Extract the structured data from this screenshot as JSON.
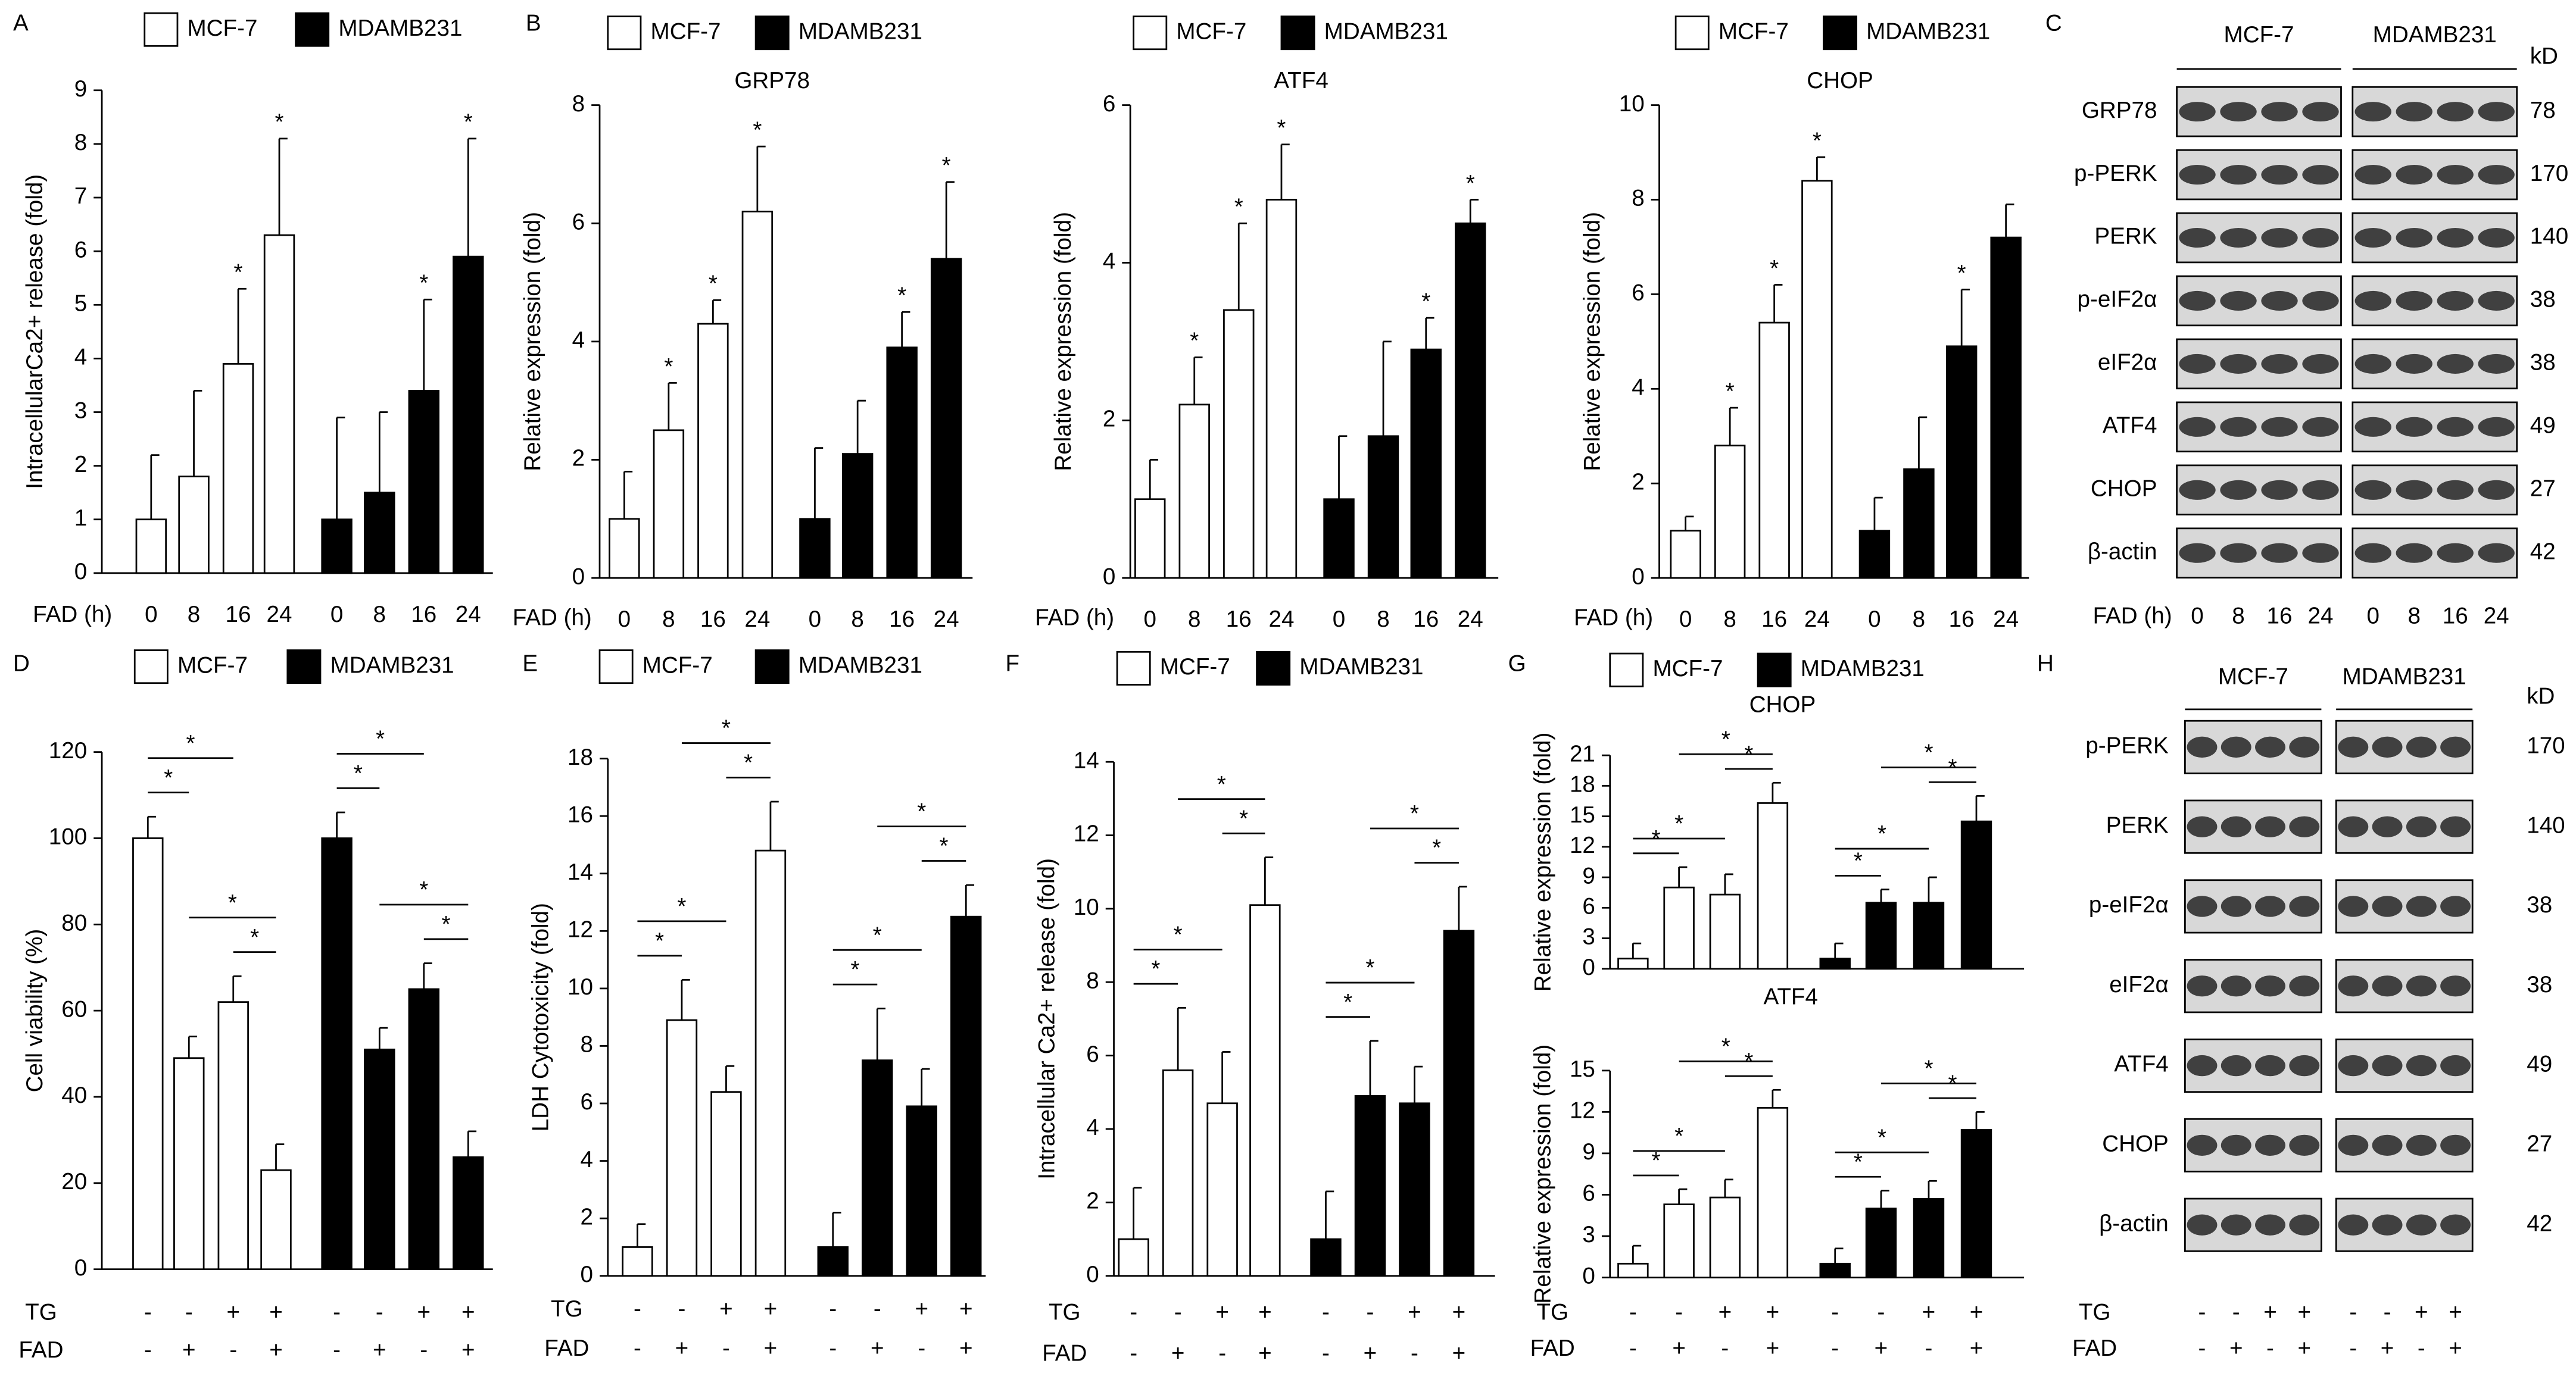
{
  "chart_data": [
    {
      "type": "bar",
      "panel": "A",
      "y_label": "IntracellularCa2+ release (fold)",
      "ylim": [
        0,
        9
      ],
      "yticks": [
        0,
        1,
        2,
        3,
        4,
        5,
        6,
        7,
        8,
        9
      ],
      "x_label": "FAD (h)",
      "categories": [
        "0",
        "8",
        "16",
        "24",
        "0",
        "8",
        "16",
        "24"
      ],
      "series": [
        {
          "name": "MCF-7",
          "color": "#ffffff",
          "values": [
            1,
            1.8,
            3.9,
            6.3,
            null,
            null,
            null,
            null
          ],
          "errors": [
            1.2,
            1.6,
            1.4,
            1.8,
            null,
            null,
            null,
            null
          ]
        },
        {
          "name": "MDAMB231",
          "color": "#000000",
          "values": [
            null,
            null,
            null,
            null,
            1,
            1.5,
            3.4,
            5.9
          ],
          "errors": [
            null,
            null,
            null,
            null,
            1.9,
            1.5,
            1.7,
            2.2
          ]
        }
      ],
      "significant": [
        2,
        3,
        6,
        7
      ],
      "significance_label": "*",
      "legend": true
    },
    {
      "type": "bar",
      "panel": "B",
      "title": "GRP78",
      "y_label": "Relative expression (fold)",
      "ylim": [
        0,
        8
      ],
      "yticks": [
        0,
        2,
        4,
        6,
        8
      ],
      "x_label": "FAD (h)",
      "categories": [
        "0",
        "8",
        "16",
        "24",
        "0",
        "8",
        "16",
        "24"
      ],
      "series": [
        {
          "name": "MCF-7",
          "color": "#ffffff",
          "values": [
            1,
            2.5,
            4.3,
            6.2,
            null,
            null,
            null,
            null
          ],
          "errors": [
            0.8,
            0.8,
            0.4,
            1.1,
            null,
            null,
            null,
            null
          ]
        },
        {
          "name": "MDAMB231",
          "color": "#000000",
          "values": [
            null,
            null,
            null,
            null,
            1,
            2.1,
            3.9,
            5.4
          ],
          "errors": [
            null,
            null,
            null,
            null,
            1.2,
            0.9,
            0.6,
            1.3
          ]
        }
      ],
      "significant": [
        1,
        2,
        3,
        6,
        7
      ],
      "significance_label": "*",
      "legend": true
    },
    {
      "type": "bar",
      "title": "ATF4",
      "y_label": "Relative expression (fold)",
      "ylim": [
        0,
        6
      ],
      "yticks": [
        0,
        2,
        4,
        6
      ],
      "x_label": "FAD (h)",
      "categories": [
        "0",
        "8",
        "16",
        "24",
        "0",
        "8",
        "16",
        "24"
      ],
      "series": [
        {
          "name": "MCF-7",
          "color": "#ffffff",
          "values": [
            1,
            2.2,
            3.4,
            4.8,
            null,
            null,
            null,
            null
          ],
          "errors": [
            0.5,
            0.6,
            1.1,
            0.7,
            null,
            null,
            null,
            null
          ]
        },
        {
          "name": "MDAMB231",
          "color": "#000000",
          "values": [
            null,
            null,
            null,
            null,
            1,
            1.8,
            2.9,
            4.5
          ],
          "errors": [
            null,
            null,
            null,
            null,
            0.8,
            1.2,
            0.4,
            0.3
          ]
        }
      ],
      "significant": [
        1,
        2,
        3,
        6,
        7
      ],
      "significance_label": "*",
      "legend": true
    },
    {
      "type": "bar",
      "title": "CHOP",
      "y_label": "Relative expression (fold)",
      "ylim": [
        0,
        10
      ],
      "yticks": [
        0,
        2,
        4,
        6,
        8,
        10
      ],
      "x_label": "FAD (h)",
      "categories": [
        "0",
        "8",
        "16",
        "24",
        "0",
        "8",
        "16",
        "24"
      ],
      "series": [
        {
          "name": "MCF-7",
          "color": "#ffffff",
          "values": [
            1,
            2.8,
            5.4,
            8.4,
            null,
            null,
            null,
            null
          ],
          "errors": [
            0.3,
            0.8,
            0.8,
            0.5,
            null,
            null,
            null,
            null
          ]
        },
        {
          "name": "MDAMB231",
          "color": "#000000",
          "values": [
            null,
            null,
            null,
            null,
            1,
            2.3,
            4.9,
            7.2
          ],
          "errors": [
            null,
            null,
            null,
            null,
            0.7,
            1.1,
            1.2,
            0.7
          ]
        }
      ],
      "significant": [
        1,
        2,
        3,
        6
      ],
      "significance_label": "*",
      "legend": true
    },
    {
      "type": "bar",
      "panel": "D",
      "y_label": "Cell viability (%)",
      "ylim": [
        0,
        120
      ],
      "yticks": [
        0,
        20,
        40,
        60,
        80,
        100,
        120
      ],
      "condition_rows": [
        {
          "name": "TG",
          "values": [
            "-",
            "-",
            "+",
            "+",
            "-",
            "-",
            "+",
            "+"
          ]
        },
        {
          "name": "FAD",
          "values": [
            "-",
            "+",
            "-",
            "+",
            "-",
            "+",
            "-",
            "+"
          ]
        }
      ],
      "series": [
        {
          "name": "MCF-7",
          "color": "#ffffff",
          "values": [
            100,
            49,
            62,
            23,
            null,
            null,
            null,
            null
          ],
          "errors": [
            5,
            5,
            6,
            6,
            null,
            null,
            null,
            null
          ]
        },
        {
          "name": "MDAMB231",
          "color": "#000000",
          "values": [
            null,
            null,
            null,
            null,
            100,
            51,
            65,
            26
          ],
          "errors": [
            null,
            null,
            null,
            null,
            6,
            5,
            6,
            6
          ]
        }
      ],
      "comparisons": [
        [
          0,
          1
        ],
        [
          0,
          2
        ],
        [
          1,
          3
        ],
        [
          2,
          3
        ],
        [
          4,
          5
        ],
        [
          4,
          6
        ],
        [
          5,
          7
        ],
        [
          6,
          7
        ]
      ],
      "significance_label": "*",
      "legend": true
    },
    {
      "type": "bar",
      "panel": "E",
      "y_label": "LDH Cytotoxicity (fold)",
      "ylim": [
        0,
        18
      ],
      "yticks": [
        0,
        2,
        4,
        6,
        8,
        10,
        12,
        14,
        16,
        18
      ],
      "condition_rows": [
        {
          "name": "TG",
          "values": [
            "-",
            "-",
            "+",
            "+",
            "-",
            "-",
            "+",
            "+"
          ]
        },
        {
          "name": "FAD",
          "values": [
            "-",
            "+",
            "-",
            "+",
            "-",
            "+",
            "-",
            "+"
          ]
        }
      ],
      "series": [
        {
          "name": "MCF-7",
          "color": "#ffffff",
          "values": [
            1,
            8.9,
            6.4,
            14.8,
            null,
            null,
            null,
            null
          ],
          "errors": [
            0.8,
            1.4,
            0.9,
            1.7,
            null,
            null,
            null,
            null
          ]
        },
        {
          "name": "MDAMB231",
          "color": "#000000",
          "values": [
            null,
            null,
            null,
            null,
            1,
            7.5,
            5.9,
            12.5
          ],
          "errors": [
            null,
            null,
            null,
            null,
            1.2,
            1.8,
            1.3,
            1.1
          ]
        }
      ],
      "comparisons": [
        [
          0,
          1
        ],
        [
          0,
          2
        ],
        [
          1,
          3
        ],
        [
          2,
          3
        ],
        [
          4,
          5
        ],
        [
          4,
          6
        ],
        [
          5,
          7
        ],
        [
          6,
          7
        ]
      ],
      "significance_label": "*",
      "legend": true
    },
    {
      "type": "bar",
      "panel": "F",
      "y_label": "Intracellular Ca2+ release (fold)",
      "ylim": [
        0,
        14
      ],
      "yticks": [
        0,
        2,
        4,
        6,
        8,
        10,
        12,
        14
      ],
      "condition_rows": [
        {
          "name": "TG",
          "values": [
            "-",
            "-",
            "+",
            "+",
            "-",
            "-",
            "+",
            "+"
          ]
        },
        {
          "name": "FAD",
          "values": [
            "-",
            "+",
            "-",
            "+",
            "-",
            "+",
            "-",
            "+"
          ]
        }
      ],
      "series": [
        {
          "name": "MCF-7",
          "color": "#ffffff",
          "values": [
            1,
            5.6,
            4.7,
            10.1,
            null,
            null,
            null,
            null
          ],
          "errors": [
            1.4,
            1.7,
            1.4,
            1.3,
            null,
            null,
            null,
            null
          ]
        },
        {
          "name": "MDAMB231",
          "color": "#000000",
          "values": [
            null,
            null,
            null,
            null,
            1,
            4.9,
            4.7,
            9.4
          ],
          "errors": [
            null,
            null,
            null,
            null,
            1.3,
            1.5,
            1.0,
            1.2
          ]
        }
      ],
      "comparisons": [
        [
          0,
          1
        ],
        [
          0,
          2
        ],
        [
          1,
          3
        ],
        [
          2,
          3
        ],
        [
          4,
          5
        ],
        [
          4,
          6
        ],
        [
          5,
          7
        ],
        [
          6,
          7
        ]
      ],
      "significance_label": "*",
      "legend": true
    },
    {
      "type": "bar",
      "panel": "G",
      "title": "CHOP",
      "y_label": "Relative expression (fold)",
      "ylim": [
        0,
        21
      ],
      "yticks": [
        0,
        3,
        6,
        9,
        12,
        15,
        18,
        21
      ],
      "series": [
        {
          "name": "MCF-7",
          "color": "#ffffff",
          "values": [
            1,
            8,
            7.3,
            16.3,
            null,
            null,
            null,
            null
          ],
          "errors": [
            1.5,
            2,
            2,
            2,
            null,
            null,
            null,
            null
          ]
        },
        {
          "name": "MDAMB231",
          "color": "#000000",
          "values": [
            null,
            null,
            null,
            null,
            1,
            6.5,
            6.5,
            14.5
          ],
          "errors": [
            null,
            null,
            null,
            null,
            1.5,
            1.3,
            2.5,
            2.5
          ]
        }
      ],
      "comparisons": [
        [
          0,
          1
        ],
        [
          0,
          2
        ],
        [
          1,
          3
        ],
        [
          2,
          3
        ],
        [
          4,
          5
        ],
        [
          4,
          6
        ],
        [
          5,
          7
        ],
        [
          6,
          7
        ]
      ],
      "significance_label": "*",
      "legend": true
    },
    {
      "type": "bar",
      "title": "ATF4",
      "y_label": "Relative expression (fold)",
      "ylim": [
        0,
        15
      ],
      "yticks": [
        0,
        3,
        6,
        9,
        12,
        15
      ],
      "condition_rows": [
        {
          "name": "TG",
          "values": [
            "-",
            "-",
            "+",
            "+",
            "-",
            "-",
            "+",
            "+"
          ]
        },
        {
          "name": "FAD",
          "values": [
            "-",
            "+",
            "-",
            "+",
            "-",
            "+",
            "-",
            "+"
          ]
        }
      ],
      "series": [
        {
          "name": "MCF-7",
          "color": "#ffffff",
          "values": [
            1,
            5.3,
            5.8,
            12.3,
            null,
            null,
            null,
            null
          ],
          "errors": [
            1.3,
            1.1,
            1.3,
            1.3,
            null,
            null,
            null,
            null
          ]
        },
        {
          "name": "MDAMB231",
          "color": "#000000",
          "values": [
            null,
            null,
            null,
            null,
            1,
            5,
            5.7,
            10.7
          ],
          "errors": [
            null,
            null,
            null,
            null,
            1.1,
            1.3,
            1.3,
            1.3
          ]
        }
      ],
      "comparisons": [
        [
          0,
          1
        ],
        [
          0,
          2
        ],
        [
          1,
          3
        ],
        [
          2,
          3
        ],
        [
          4,
          5
        ],
        [
          4,
          6
        ],
        [
          5,
          7
        ],
        [
          6,
          7
        ]
      ],
      "significance_label": "*",
      "legend": false
    }
  ],
  "blots": [
    {
      "panel": "C",
      "groups": [
        "MCF-7",
        "MDAMB231"
      ],
      "unit": "kD",
      "rows": [
        {
          "protein": "GRP78",
          "kd": 78
        },
        {
          "protein": "p-PERK",
          "kd": 170
        },
        {
          "protein": "PERK",
          "kd": 140
        },
        {
          "protein": "p-eIF2α",
          "kd": 38
        },
        {
          "protein": "eIF2α",
          "kd": 38
        },
        {
          "protein": "ATF4",
          "kd": 49
        },
        {
          "protein": "CHOP",
          "kd": 27
        },
        {
          "protein": "β-actin",
          "kd": 42
        }
      ],
      "lane_rows": [
        {
          "name": "FAD (h)",
          "values": [
            "0",
            "8",
            "16",
            "24",
            "0",
            "8",
            "16",
            "24"
          ]
        }
      ]
    },
    {
      "panel": "H",
      "groups": [
        "MCF-7",
        "MDAMB231"
      ],
      "unit": "kD",
      "rows": [
        {
          "protein": "p-PERK",
          "kd": 170
        },
        {
          "protein": "PERK",
          "kd": 140
        },
        {
          "protein": "p-eIF2α",
          "kd": 38
        },
        {
          "protein": "eIF2α",
          "kd": 38
        },
        {
          "protein": "ATF4",
          "kd": 49
        },
        {
          "protein": "CHOP",
          "kd": 27
        },
        {
          "protein": "β-actin",
          "kd": 42
        }
      ],
      "lane_rows": [
        {
          "name": "TG",
          "values": [
            "-",
            "-",
            "+",
            "+",
            "-",
            "-",
            "+",
            "+"
          ]
        },
        {
          "name": "FAD",
          "values": [
            "-",
            "+",
            "-",
            "+",
            "-",
            "+",
            "-",
            "+"
          ]
        }
      ]
    }
  ]
}
